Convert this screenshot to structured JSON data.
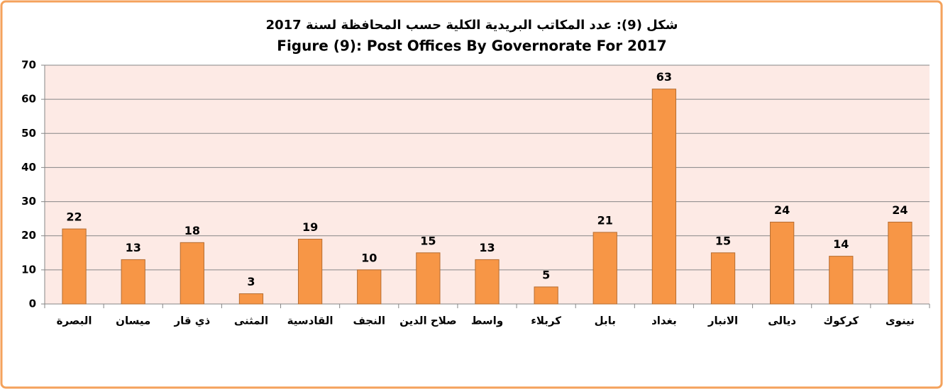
{
  "chart_data": {
    "type": "bar",
    "title": "شكل (9): عدد المكاتب البريدية الكلية حسب المحافظة لسنة 2017",
    "subtitle": "Figure (9): Post Offices By Governorate For 2017",
    "categories": [
      "البصرة",
      "ميسان",
      "ذي قار",
      "المثنى",
      "القادسية",
      "النجف",
      "صلاح الدين",
      "واسط",
      "كربلاء",
      "بابل",
      "بغداد",
      "الانبار",
      "ديالى",
      "كركوك",
      "نينوى"
    ],
    "values": [
      22,
      13,
      18,
      3,
      19,
      10,
      15,
      13,
      5,
      21,
      63,
      15,
      24,
      14,
      24
    ],
    "color": "#f79646",
    "ylim": [
      0,
      70
    ],
    "yticks": [
      0,
      10,
      20,
      30,
      40,
      50,
      60,
      70
    ],
    "grid": true
  }
}
